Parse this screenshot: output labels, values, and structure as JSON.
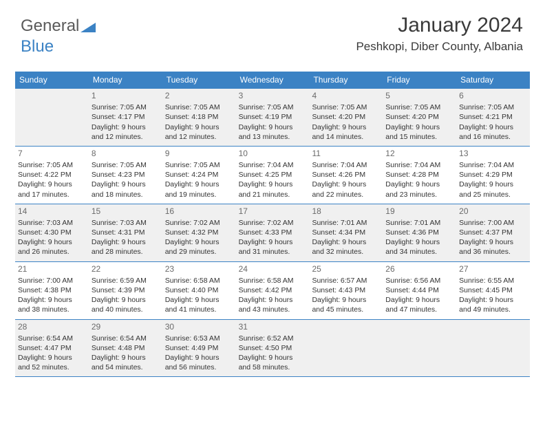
{
  "logo": {
    "general": "General",
    "blue": "Blue",
    "tri_color": "#3b82c4"
  },
  "header": {
    "title": "January 2024",
    "location": "Peshkopi, Diber County, Albania"
  },
  "colors": {
    "header_bg": "#3b82c4",
    "header_fg": "#ffffff",
    "border": "#3b82c4",
    "shade": "#f0f0f0",
    "text": "#333333",
    "daynum": "#6a6a6a"
  },
  "day_headers": [
    "Sunday",
    "Monday",
    "Tuesday",
    "Wednesday",
    "Thursday",
    "Friday",
    "Saturday"
  ],
  "weeks": [
    [
      {
        "day": "",
        "sunrise": "",
        "sunset": "",
        "daylight": ""
      },
      {
        "day": "1",
        "sunrise": "Sunrise: 7:05 AM",
        "sunset": "Sunset: 4:17 PM",
        "daylight": "Daylight: 9 hours and 12 minutes."
      },
      {
        "day": "2",
        "sunrise": "Sunrise: 7:05 AM",
        "sunset": "Sunset: 4:18 PM",
        "daylight": "Daylight: 9 hours and 12 minutes."
      },
      {
        "day": "3",
        "sunrise": "Sunrise: 7:05 AM",
        "sunset": "Sunset: 4:19 PM",
        "daylight": "Daylight: 9 hours and 13 minutes."
      },
      {
        "day": "4",
        "sunrise": "Sunrise: 7:05 AM",
        "sunset": "Sunset: 4:20 PM",
        "daylight": "Daylight: 9 hours and 14 minutes."
      },
      {
        "day": "5",
        "sunrise": "Sunrise: 7:05 AM",
        "sunset": "Sunset: 4:20 PM",
        "daylight": "Daylight: 9 hours and 15 minutes."
      },
      {
        "day": "6",
        "sunrise": "Sunrise: 7:05 AM",
        "sunset": "Sunset: 4:21 PM",
        "daylight": "Daylight: 9 hours and 16 minutes."
      }
    ],
    [
      {
        "day": "7",
        "sunrise": "Sunrise: 7:05 AM",
        "sunset": "Sunset: 4:22 PM",
        "daylight": "Daylight: 9 hours and 17 minutes."
      },
      {
        "day": "8",
        "sunrise": "Sunrise: 7:05 AM",
        "sunset": "Sunset: 4:23 PM",
        "daylight": "Daylight: 9 hours and 18 minutes."
      },
      {
        "day": "9",
        "sunrise": "Sunrise: 7:05 AM",
        "sunset": "Sunset: 4:24 PM",
        "daylight": "Daylight: 9 hours and 19 minutes."
      },
      {
        "day": "10",
        "sunrise": "Sunrise: 7:04 AM",
        "sunset": "Sunset: 4:25 PM",
        "daylight": "Daylight: 9 hours and 21 minutes."
      },
      {
        "day": "11",
        "sunrise": "Sunrise: 7:04 AM",
        "sunset": "Sunset: 4:26 PM",
        "daylight": "Daylight: 9 hours and 22 minutes."
      },
      {
        "day": "12",
        "sunrise": "Sunrise: 7:04 AM",
        "sunset": "Sunset: 4:28 PM",
        "daylight": "Daylight: 9 hours and 23 minutes."
      },
      {
        "day": "13",
        "sunrise": "Sunrise: 7:04 AM",
        "sunset": "Sunset: 4:29 PM",
        "daylight": "Daylight: 9 hours and 25 minutes."
      }
    ],
    [
      {
        "day": "14",
        "sunrise": "Sunrise: 7:03 AM",
        "sunset": "Sunset: 4:30 PM",
        "daylight": "Daylight: 9 hours and 26 minutes."
      },
      {
        "day": "15",
        "sunrise": "Sunrise: 7:03 AM",
        "sunset": "Sunset: 4:31 PM",
        "daylight": "Daylight: 9 hours and 28 minutes."
      },
      {
        "day": "16",
        "sunrise": "Sunrise: 7:02 AM",
        "sunset": "Sunset: 4:32 PM",
        "daylight": "Daylight: 9 hours and 29 minutes."
      },
      {
        "day": "17",
        "sunrise": "Sunrise: 7:02 AM",
        "sunset": "Sunset: 4:33 PM",
        "daylight": "Daylight: 9 hours and 31 minutes."
      },
      {
        "day": "18",
        "sunrise": "Sunrise: 7:01 AM",
        "sunset": "Sunset: 4:34 PM",
        "daylight": "Daylight: 9 hours and 32 minutes."
      },
      {
        "day": "19",
        "sunrise": "Sunrise: 7:01 AM",
        "sunset": "Sunset: 4:36 PM",
        "daylight": "Daylight: 9 hours and 34 minutes."
      },
      {
        "day": "20",
        "sunrise": "Sunrise: 7:00 AM",
        "sunset": "Sunset: 4:37 PM",
        "daylight": "Daylight: 9 hours and 36 minutes."
      }
    ],
    [
      {
        "day": "21",
        "sunrise": "Sunrise: 7:00 AM",
        "sunset": "Sunset: 4:38 PM",
        "daylight": "Daylight: 9 hours and 38 minutes."
      },
      {
        "day": "22",
        "sunrise": "Sunrise: 6:59 AM",
        "sunset": "Sunset: 4:39 PM",
        "daylight": "Daylight: 9 hours and 40 minutes."
      },
      {
        "day": "23",
        "sunrise": "Sunrise: 6:58 AM",
        "sunset": "Sunset: 4:40 PM",
        "daylight": "Daylight: 9 hours and 41 minutes."
      },
      {
        "day": "24",
        "sunrise": "Sunrise: 6:58 AM",
        "sunset": "Sunset: 4:42 PM",
        "daylight": "Daylight: 9 hours and 43 minutes."
      },
      {
        "day": "25",
        "sunrise": "Sunrise: 6:57 AM",
        "sunset": "Sunset: 4:43 PM",
        "daylight": "Daylight: 9 hours and 45 minutes."
      },
      {
        "day": "26",
        "sunrise": "Sunrise: 6:56 AM",
        "sunset": "Sunset: 4:44 PM",
        "daylight": "Daylight: 9 hours and 47 minutes."
      },
      {
        "day": "27",
        "sunrise": "Sunrise: 6:55 AM",
        "sunset": "Sunset: 4:45 PM",
        "daylight": "Daylight: 9 hours and 49 minutes."
      }
    ],
    [
      {
        "day": "28",
        "sunrise": "Sunrise: 6:54 AM",
        "sunset": "Sunset: 4:47 PM",
        "daylight": "Daylight: 9 hours and 52 minutes."
      },
      {
        "day": "29",
        "sunrise": "Sunrise: 6:54 AM",
        "sunset": "Sunset: 4:48 PM",
        "daylight": "Daylight: 9 hours and 54 minutes."
      },
      {
        "day": "30",
        "sunrise": "Sunrise: 6:53 AM",
        "sunset": "Sunset: 4:49 PM",
        "daylight": "Daylight: 9 hours and 56 minutes."
      },
      {
        "day": "31",
        "sunrise": "Sunrise: 6:52 AM",
        "sunset": "Sunset: 4:50 PM",
        "daylight": "Daylight: 9 hours and 58 minutes."
      },
      {
        "day": "",
        "sunrise": "",
        "sunset": "",
        "daylight": ""
      },
      {
        "day": "",
        "sunrise": "",
        "sunset": "",
        "daylight": ""
      },
      {
        "day": "",
        "sunrise": "",
        "sunset": "",
        "daylight": ""
      }
    ]
  ]
}
